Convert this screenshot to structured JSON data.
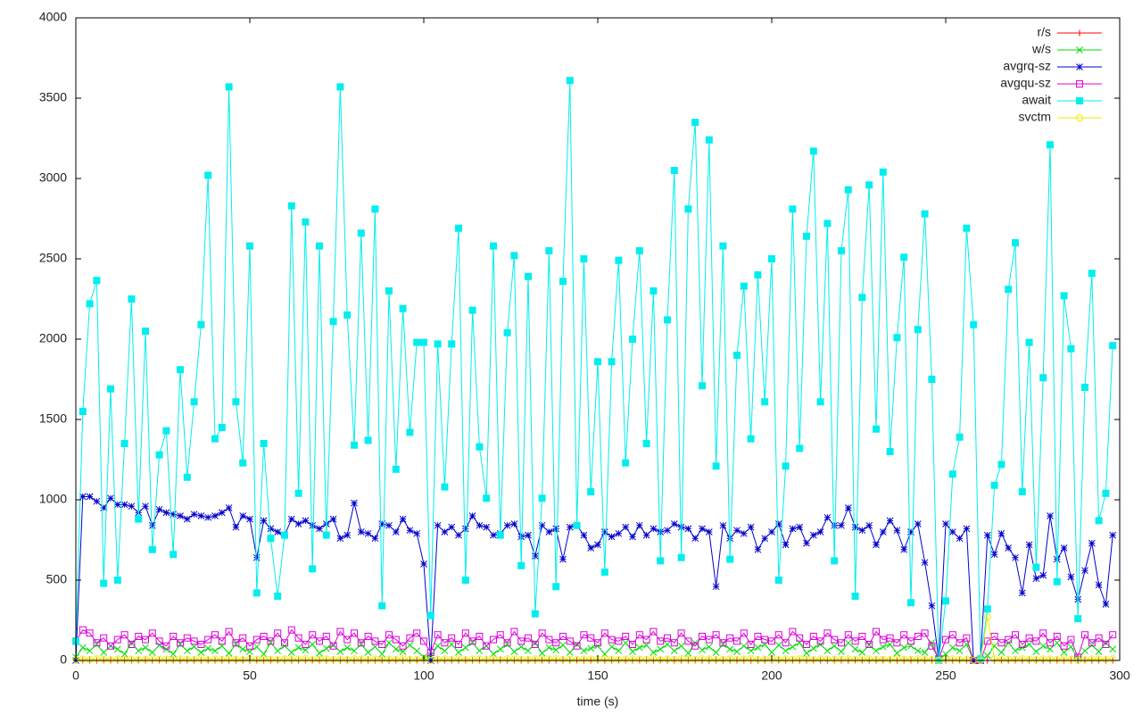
{
  "chart_data": {
    "type": "line",
    "xlabel": "time (s)",
    "xlim": [
      0,
      300
    ],
    "xticks": [
      0,
      50,
      100,
      150,
      200,
      250,
      300
    ],
    "ylim": [
      0,
      4000
    ],
    "yticks": [
      0,
      500,
      1000,
      1500,
      2000,
      2500,
      3000,
      3500,
      4000
    ],
    "legend": "top-right",
    "x": [
      0,
      2,
      4,
      6,
      8,
      10,
      12,
      14,
      16,
      18,
      20,
      22,
      24,
      26,
      28,
      30,
      32,
      34,
      36,
      38,
      40,
      42,
      44,
      46,
      48,
      50,
      52,
      54,
      56,
      58,
      60,
      62,
      64,
      66,
      68,
      70,
      72,
      74,
      76,
      78,
      80,
      82,
      84,
      86,
      88,
      90,
      92,
      94,
      96,
      98,
      100,
      102,
      104,
      106,
      108,
      110,
      112,
      114,
      116,
      118,
      120,
      122,
      124,
      126,
      128,
      130,
      132,
      134,
      136,
      138,
      140,
      142,
      144,
      146,
      148,
      150,
      152,
      154,
      156,
      158,
      160,
      162,
      164,
      166,
      168,
      170,
      172,
      174,
      176,
      178,
      180,
      182,
      184,
      186,
      188,
      190,
      192,
      194,
      196,
      198,
      200,
      202,
      204,
      206,
      208,
      210,
      212,
      214,
      216,
      218,
      220,
      222,
      224,
      226,
      228,
      230,
      232,
      234,
      236,
      238,
      240,
      242,
      244,
      246,
      248,
      250,
      252,
      254,
      256,
      258,
      260,
      262,
      264,
      266,
      268,
      270,
      272,
      274,
      276,
      278,
      280,
      282,
      284,
      286,
      288,
      290,
      292,
      294,
      296,
      298
    ],
    "series": [
      {
        "name": "r/s",
        "color": "#ff0000",
        "marker": "plus",
        "values": [
          0,
          0,
          0,
          0,
          0,
          0,
          0,
          0,
          0,
          0,
          0,
          0,
          0,
          0,
          0,
          0,
          0,
          0,
          0,
          0,
          0,
          0,
          0,
          0,
          0,
          0,
          0,
          0,
          0,
          0,
          0,
          0,
          0,
          0,
          0,
          0,
          0,
          0,
          0,
          0,
          0,
          0,
          0,
          0,
          0,
          0,
          0,
          0,
          0,
          0,
          0,
          0,
          0,
          0,
          0,
          0,
          0,
          0,
          0,
          0,
          0,
          0,
          0,
          0,
          0,
          0,
          0,
          0,
          0,
          0,
          0,
          0,
          0,
          0,
          0,
          0,
          0,
          0,
          0,
          0,
          0,
          0,
          0,
          0,
          0,
          0,
          0,
          0,
          0,
          0,
          0,
          0,
          0,
          0,
          0,
          0,
          0,
          0,
          0,
          0,
          0,
          0,
          0,
          0,
          0,
          0,
          0,
          0,
          0,
          0,
          0,
          0,
          0,
          0,
          0,
          0,
          0,
          0,
          0,
          0,
          0,
          0,
          0,
          0,
          0,
          0,
          0,
          0,
          0,
          0,
          0,
          0,
          0,
          0,
          0,
          0,
          0,
          0,
          0,
          0,
          0,
          0,
          0,
          0,
          0,
          0,
          0,
          0,
          0,
          0
        ]
      },
      {
        "name": "w/s",
        "color": "#00dd00",
        "marker": "cross",
        "values": [
          20,
          80,
          60,
          100,
          50,
          90,
          70,
          40,
          110,
          60,
          80,
          50,
          95,
          70,
          40,
          100,
          60,
          85,
          50,
          75,
          60,
          90,
          45,
          100,
          70,
          55,
          85,
          40,
          110,
          60,
          90,
          50,
          80,
          65,
          100,
          45,
          75,
          95,
          55,
          80,
          60,
          100,
          50,
          85,
          40,
          110,
          70,
          55,
          95,
          60,
          20,
          30,
          90,
          60,
          100,
          50,
          80,
          110,
          60,
          90,
          40,
          70,
          100,
          55,
          85,
          60,
          110,
          45,
          80,
          65,
          95,
          50,
          100,
          60,
          75,
          90,
          40,
          85,
          60,
          110,
          55,
          80,
          95,
          50,
          70,
          100,
          60,
          90,
          45,
          110,
          65,
          85,
          50,
          100,
          70,
          55,
          90,
          60,
          80,
          100,
          50,
          95,
          60,
          85,
          110,
          45,
          75,
          100,
          60,
          90,
          55,
          110,
          70,
          50,
          95,
          60,
          85,
          100,
          45,
          80,
          90,
          60,
          50,
          110,
          10,
          40,
          80,
          60,
          100,
          0,
          0,
          30,
          90,
          50,
          110,
          60,
          80,
          100,
          55,
          90,
          70,
          110,
          50,
          85,
          10,
          60,
          95,
          55,
          110,
          70
        ]
      },
      {
        "name": "avgrq-sz",
        "color": "#0000cc",
        "marker": "star",
        "values": [
          0,
          1020,
          1020,
          990,
          950,
          1010,
          970,
          970,
          960,
          920,
          960,
          840,
          940,
          920,
          910,
          900,
          880,
          910,
          900,
          890,
          900,
          920,
          950,
          830,
          900,
          880,
          640,
          870,
          820,
          800,
          780,
          880,
          850,
          870,
          840,
          820,
          850,
          880,
          760,
          780,
          980,
          800,
          790,
          760,
          850,
          840,
          800,
          880,
          810,
          790,
          600,
          0,
          840,
          800,
          830,
          780,
          820,
          900,
          840,
          830,
          780,
          790,
          840,
          850,
          770,
          780,
          650,
          840,
          800,
          820,
          630,
          830,
          840,
          780,
          700,
          720,
          800,
          770,
          790,
          830,
          770,
          840,
          780,
          820,
          800,
          810,
          850,
          830,
          820,
          760,
          820,
          800,
          460,
          840,
          760,
          810,
          790,
          830,
          690,
          760,
          800,
          850,
          720,
          820,
          830,
          730,
          780,
          800,
          890,
          840,
          840,
          950,
          830,
          810,
          840,
          720,
          800,
          870,
          810,
          690,
          800,
          850,
          610,
          340,
          0,
          850,
          800,
          760,
          820,
          0,
          0,
          780,
          660,
          790,
          700,
          640,
          420,
          720,
          510,
          530,
          900,
          630,
          700,
          520,
          380,
          560,
          730,
          470,
          350,
          780
        ]
      },
      {
        "name": "avgqu-sz",
        "color": "#dd00dd",
        "marker": "box",
        "values": [
          120,
          190,
          170,
          110,
          140,
          90,
          130,
          160,
          100,
          150,
          130,
          170,
          120,
          90,
          150,
          110,
          140,
          120,
          100,
          130,
          160,
          120,
          180,
          110,
          140,
          90,
          130,
          150,
          120,
          170,
          110,
          190,
          140,
          100,
          160,
          120,
          150,
          90,
          180,
          130,
          170,
          110,
          150,
          120,
          100,
          160,
          130,
          90,
          140,
          170,
          120,
          50,
          160,
          110,
          140,
          100,
          170,
          120,
          150,
          90,
          130,
          160,
          110,
          180,
          120,
          140,
          100,
          170,
          130,
          110,
          150,
          120,
          90,
          160,
          140,
          110,
          170,
          130,
          120,
          150,
          100,
          160,
          130,
          180,
          120,
          140,
          110,
          170,
          120,
          90,
          150,
          130,
          160,
          110,
          140,
          120,
          170,
          100,
          150,
          130,
          120,
          160,
          110,
          180,
          140,
          100,
          150,
          120,
          170,
          130,
          110,
          160,
          120,
          150,
          100,
          180,
          130,
          140,
          110,
          160,
          120,
          150,
          170,
          90,
          10,
          130,
          160,
          110,
          140,
          0,
          0,
          120,
          150,
          110,
          130,
          160,
          100,
          140,
          120,
          170,
          110,
          150,
          90,
          130,
          20,
          160,
          110,
          140,
          100,
          160
        ]
      },
      {
        "name": "await",
        "color": "#00eeee",
        "marker": "filledbox",
        "values": [
          120,
          1550,
          2220,
          2365,
          480,
          1690,
          500,
          1350,
          2250,
          880,
          2050,
          690,
          1280,
          1430,
          660,
          1810,
          1140,
          1610,
          2090,
          3020,
          1380,
          1450,
          3570,
          1610,
          1230,
          2580,
          420,
          1350,
          760,
          400,
          780,
          2830,
          1040,
          2730,
          570,
          2580,
          780,
          2110,
          3570,
          2150,
          1340,
          2660,
          1370,
          2810,
          340,
          2300,
          1190,
          2190,
          1420,
          1980,
          1980,
          280,
          1970,
          1080,
          1970,
          2690,
          500,
          2180,
          1330,
          1010,
          2580,
          780,
          2040,
          2520,
          590,
          2390,
          290,
          1010,
          2550,
          460,
          2360,
          3610,
          840,
          2500,
          1050,
          1860,
          550,
          1860,
          2490,
          1230,
          2000,
          2550,
          1350,
          2300,
          620,
          2120,
          3050,
          640,
          2810,
          3350,
          1710,
          3240,
          1210,
          2580,
          630,
          1900,
          2330,
          1380,
          2400,
          1610,
          2500,
          500,
          1210,
          2810,
          1320,
          2640,
          3170,
          1610,
          2720,
          620,
          2550,
          2930,
          400,
          2260,
          2960,
          1440,
          3040,
          1300,
          2010,
          2510,
          360,
          2060,
          2780,
          1750,
          0,
          370,
          1160,
          1390,
          2690,
          2090,
          10,
          320,
          1090,
          1220,
          2310,
          2600,
          1050,
          1980,
          580,
          1760,
          3210,
          490,
          2270,
          1940,
          260,
          1700,
          2410,
          870,
          1040,
          1960
        ]
      },
      {
        "name": "svctm",
        "color": "#eeee00",
        "marker": "circle",
        "values": [
          5,
          8,
          6,
          10,
          7,
          5,
          9,
          6,
          8,
          5,
          7,
          10,
          6,
          8,
          5,
          9,
          7,
          6,
          10,
          5,
          8,
          6,
          9,
          7,
          5,
          10,
          6,
          8,
          7,
          5,
          9,
          6,
          8,
          10,
          5,
          7,
          9,
          6,
          8,
          5,
          10,
          7,
          6,
          9,
          5,
          8,
          7,
          10,
          6,
          5,
          8,
          0,
          7,
          9,
          6,
          10,
          5,
          8,
          7,
          6,
          9,
          5,
          10,
          8,
          6,
          7,
          9,
          5,
          8,
          10,
          6,
          7,
          5,
          9,
          8,
          6,
          10,
          7,
          5,
          8,
          9,
          6,
          7,
          10,
          5,
          8,
          6,
          9,
          7,
          5,
          10,
          8,
          6,
          7,
          9,
          5,
          8,
          10,
          6,
          7,
          9,
          5,
          8,
          6,
          10,
          7,
          5,
          9,
          8,
          6,
          7,
          10,
          5,
          8,
          9,
          6,
          7,
          5,
          10,
          8,
          6,
          9,
          7,
          5,
          0,
          8,
          10,
          6,
          7,
          0,
          0,
          270,
          9,
          5,
          8,
          6,
          10,
          7,
          5,
          9,
          8,
          6,
          10,
          7,
          0,
          5,
          9,
          8,
          6,
          10
        ]
      }
    ]
  }
}
